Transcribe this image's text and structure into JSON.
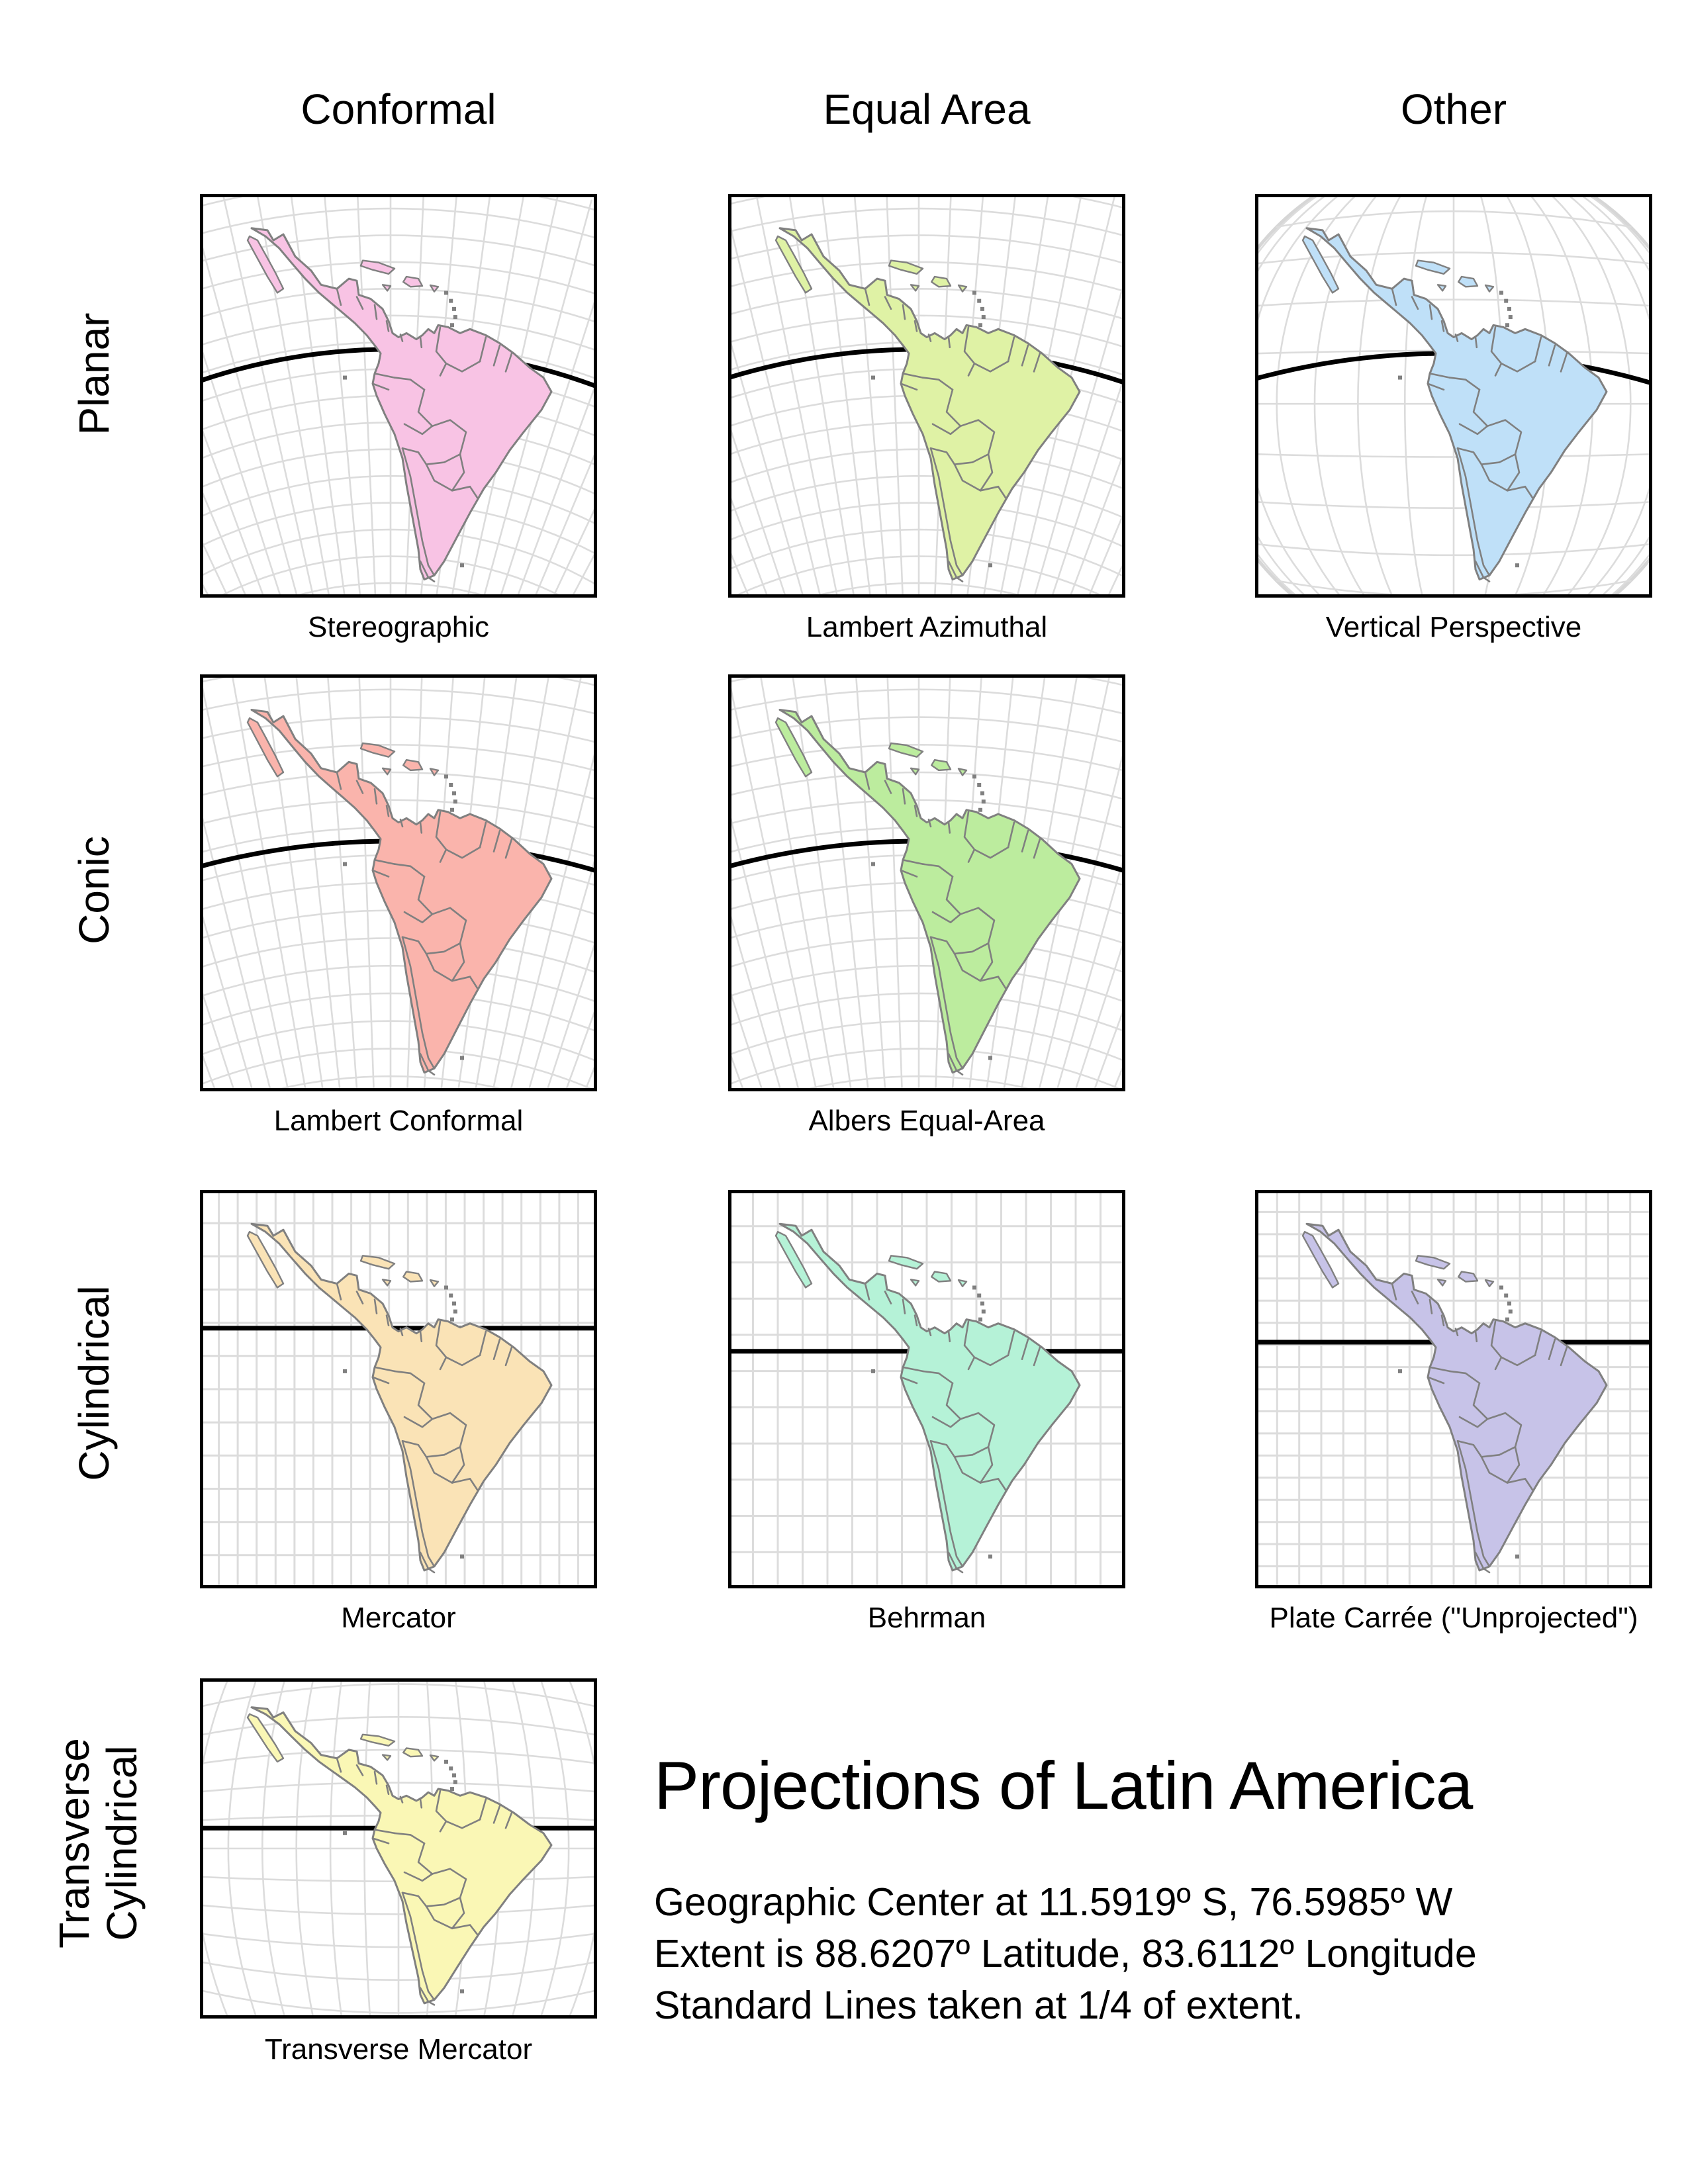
{
  "figure": {
    "title": "Projections of Latin America",
    "subtitle_lines": [
      "Geographic Center at 11.5919º S, 76.5985º W",
      "Extent is 88.6207º Latitude, 83.6112º Longitude",
      "Standard Lines taken at 1/4 of extent."
    ]
  },
  "column_headers": [
    "Conformal",
    "Equal Area",
    "Other"
  ],
  "row_labels": [
    {
      "lines": [
        "Planar"
      ]
    },
    {
      "lines": [
        "Conic"
      ]
    },
    {
      "lines": [
        "Cylindrical"
      ]
    },
    {
      "lines": [
        "Transverse",
        "Cylindrical"
      ]
    }
  ],
  "maps": [
    {
      "id": "stereographic",
      "row": "Planar",
      "column": "Conformal",
      "caption": "Stereographic",
      "fill": "#F8C3E4",
      "graticule": "curved-fan"
    },
    {
      "id": "lambert-azimuthal",
      "row": "Planar",
      "column": "Equal Area",
      "caption": "Lambert Azimuthal",
      "fill": "#DFF2A5",
      "graticule": "curved-fan"
    },
    {
      "id": "vertical-perspective",
      "row": "Planar",
      "column": "Other",
      "caption": "Vertical Perspective",
      "fill": "#BFE0F8",
      "graticule": "globe"
    },
    {
      "id": "lambert-conformal",
      "row": "Conic",
      "column": "Conformal",
      "caption": "Lambert Conformal",
      "fill": "#FAB4AC",
      "graticule": "curved-fan"
    },
    {
      "id": "albers-equal-area",
      "row": "Conic",
      "column": "Equal Area",
      "caption": "Albers Equal-Area",
      "fill": "#BCEC9E",
      "graticule": "curved-fan"
    },
    {
      "id": "mercator",
      "row": "Cylindrical",
      "column": "Conformal",
      "caption": "Mercator",
      "fill": "#FAE3B6",
      "graticule": "rectangular"
    },
    {
      "id": "behrman",
      "row": "Cylindrical",
      "column": "Equal Area",
      "caption": "Behrman",
      "fill": "#B5F2D7",
      "graticule": "rectangular"
    },
    {
      "id": "plate-carree",
      "row": "Cylindrical",
      "column": "Other",
      "caption": "Plate Carrée (\"Unprojected\")",
      "fill": "#C7C3E8",
      "graticule": "rectangular"
    },
    {
      "id": "transverse-mercator",
      "row": "Transverse Cylindrical",
      "column": "Conformal",
      "caption": "Transverse Mercator",
      "fill": "#FAF7B5",
      "graticule": "barrel"
    }
  ],
  "colors": {
    "map_frame": "#000000",
    "country_border": "#808080",
    "graticule_line": "#DCDCDC",
    "globe_outline": "#D6D6D6",
    "standard_line": "#000000",
    "text": "#000000",
    "background": "#FFFFFF"
  }
}
